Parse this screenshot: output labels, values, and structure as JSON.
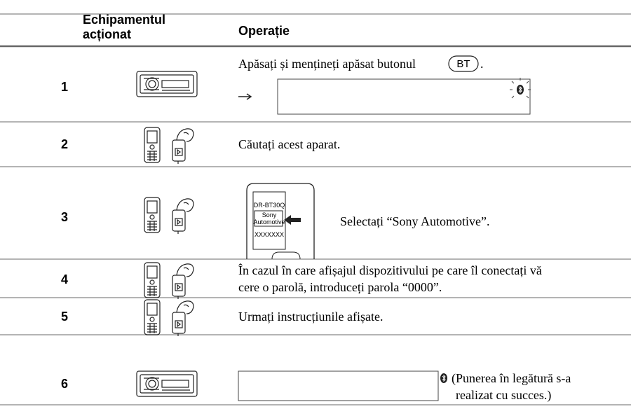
{
  "header": {
    "step": "",
    "device": [
      "Echipamentul",
      "acționat"
    ],
    "operation": "Operație"
  },
  "rows": [
    {
      "step": "1",
      "text": "Apăsați și mențineți apăsat butonul",
      "button": "BT",
      "suffix": "."
    },
    {
      "step": "2",
      "text": "Căutați acest aparat."
    },
    {
      "step": "3",
      "screen": [
        "DR-BT30Q",
        "Sony",
        "Automotive",
        "XXXXXXX"
      ],
      "text": "Selectați “Sony Automotive”."
    },
    {
      "step": "4",
      "lines": [
        "În cazul în care afișajul dispozitivului pe care îl conectați vă",
        "cere o parolă, introduceți parola “0000”."
      ]
    },
    {
      "step": "5",
      "text": "Urmați instrucțiunile afișate."
    },
    {
      "step": "6",
      "lines": [
        "(Punerea în legătură s-a",
        "realizat cu succes.)"
      ]
    }
  ]
}
